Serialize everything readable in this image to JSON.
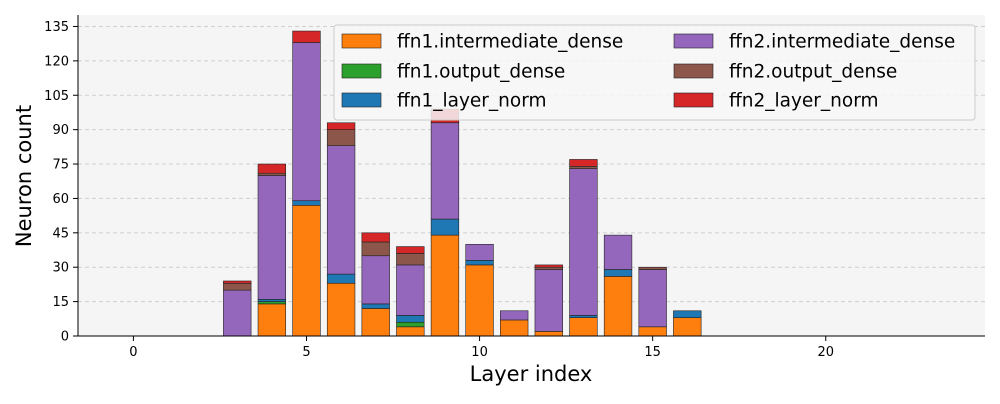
{
  "chart_data": {
    "type": "bar",
    "stacked": true,
    "title": "",
    "xlabel": "Layer index",
    "ylabel": "Neuron count",
    "xlim": [
      -1.6,
      24.6
    ],
    "ylim": [
      0,
      140
    ],
    "xticks": [
      0,
      5,
      10,
      15,
      20
    ],
    "yticks": [
      0,
      15,
      30,
      45,
      60,
      75,
      90,
      105,
      120,
      135
    ],
    "grid": "y-dashed",
    "legend_position": "top-right",
    "legend_columns": 2,
    "background": "#f5f5f5",
    "categories": [
      0,
      1,
      2,
      3,
      4,
      5,
      6,
      7,
      8,
      9,
      10,
      11,
      12,
      13,
      14,
      15,
      16,
      17,
      18,
      19,
      20,
      21,
      22,
      23
    ],
    "series": [
      {
        "name": "ffn1.intermediate_dense",
        "color": "#ff7f0e",
        "values": [
          0,
          0,
          0,
          0,
          14,
          57,
          23,
          12,
          4,
          44,
          31,
          7,
          2,
          8,
          26,
          4,
          8,
          0,
          0,
          0,
          0,
          0,
          0,
          0
        ]
      },
      {
        "name": "ffn1.output_dense",
        "color": "#2ca02c",
        "values": [
          0,
          0,
          0,
          0,
          1,
          0,
          0,
          0,
          2,
          0,
          0,
          0,
          0,
          0,
          0,
          0,
          0,
          0,
          0,
          0,
          0,
          0,
          0,
          0
        ]
      },
      {
        "name": "ffn1_layer_norm",
        "color": "#1f77b4",
        "values": [
          0,
          0,
          0,
          0,
          1,
          2,
          4,
          2,
          3,
          7,
          2,
          0,
          0,
          1,
          3,
          0,
          3,
          0,
          0,
          0,
          0,
          0,
          0,
          0
        ]
      },
      {
        "name": "ffn2.intermediate_dense",
        "color": "#9467bd",
        "values": [
          0,
          0,
          0,
          20,
          54,
          69,
          56,
          21,
          22,
          42,
          7,
          4,
          27,
          64,
          15,
          25,
          0,
          0,
          0,
          0,
          0,
          0,
          0,
          0
        ]
      },
      {
        "name": "ffn2.output_dense",
        "color": "#8c564b",
        "values": [
          0,
          0,
          0,
          3,
          1,
          0,
          7,
          6,
          5,
          0,
          0,
          0,
          1,
          1,
          0,
          1,
          0,
          0,
          0,
          0,
          0,
          0,
          0,
          0
        ]
      },
      {
        "name": "ffn2_layer_norm",
        "color": "#d62728",
        "values": [
          0,
          0,
          0,
          1,
          4,
          5,
          3,
          4,
          3,
          6,
          0,
          0,
          1,
          3,
          0,
          0,
          0,
          0,
          0,
          0,
          0,
          0,
          0,
          0
        ]
      }
    ]
  }
}
